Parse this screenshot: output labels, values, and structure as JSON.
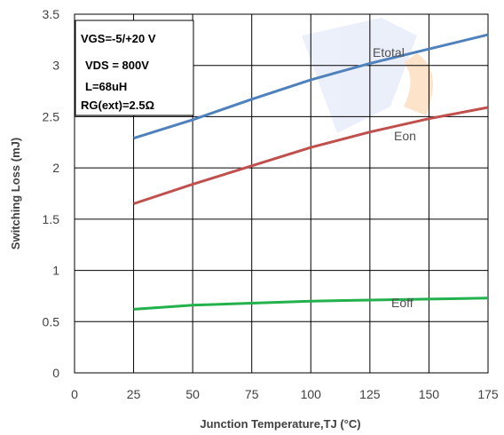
{
  "chart_data": {
    "type": "line",
    "xlabel": "Junction Temperature,TJ (°C)",
    "ylabel": "Switching Loss (mJ)",
    "xlim": [
      0,
      175
    ],
    "ylim": [
      0,
      3.5
    ],
    "x_ticks": [
      "0",
      "25",
      "50",
      "75",
      "100",
      "125",
      "150",
      "175"
    ],
    "y_ticks": [
      "0",
      "0.5",
      "1",
      "1.5",
      "2",
      "2.5",
      "3",
      "3.5"
    ],
    "grid": true,
    "annotations": [
      "VGS=-5/+20 V",
      "VDS = 800V",
      "L=68uH",
      "RG(ext)=2.5Ω"
    ],
    "x": [
      25,
      50,
      75,
      100,
      125,
      150,
      175
    ],
    "series": [
      {
        "name": "Etotal",
        "color": "#4f81bd",
        "values": [
          2.29,
          2.47,
          2.67,
          2.86,
          3.02,
          3.16,
          3.3
        ]
      },
      {
        "name": "Eon",
        "color": "#c0504d",
        "values": [
          1.65,
          1.84,
          2.02,
          2.2,
          2.35,
          2.48,
          2.59
        ]
      },
      {
        "name": "Eoff",
        "color": "#22b14c",
        "values": [
          0.62,
          0.66,
          0.68,
          0.7,
          0.71,
          0.72,
          0.73
        ]
      }
    ]
  }
}
